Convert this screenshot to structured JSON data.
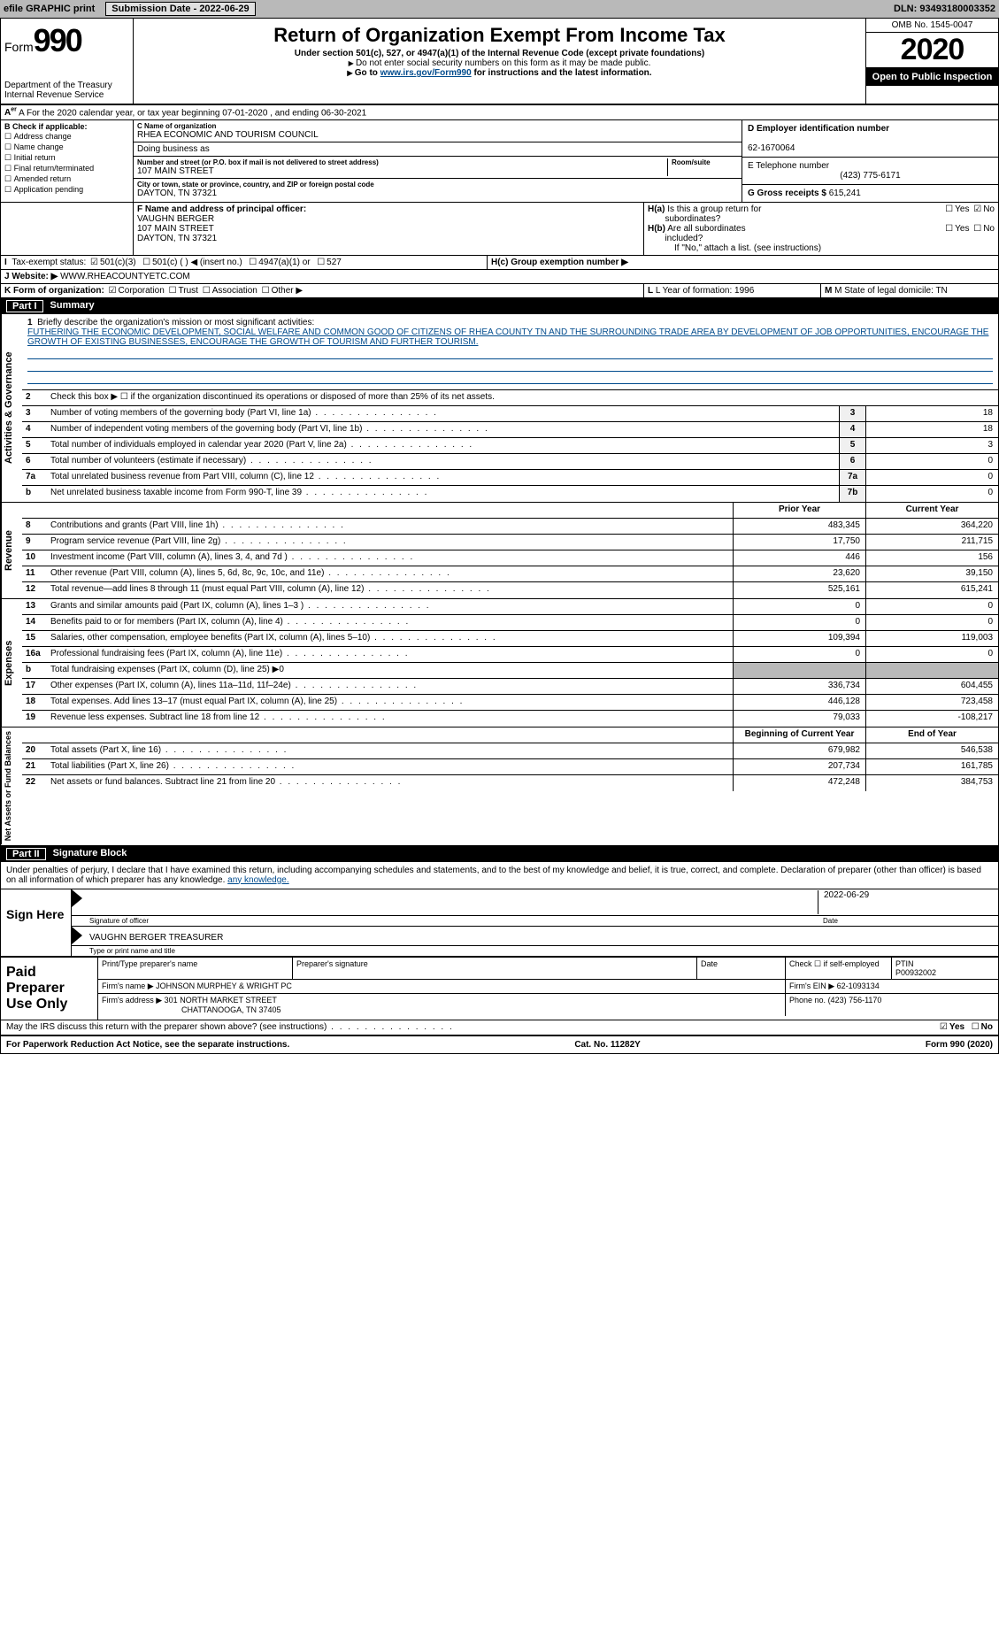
{
  "topbar": {
    "efile": "efile GRAPHIC print",
    "submission_label": "Submission Date - 2022-06-29",
    "dln": "DLN: 93493180003352"
  },
  "header": {
    "form_word": "Form",
    "form_num": "990",
    "dept": "Department of the Treasury",
    "irs": "Internal Revenue Service",
    "title": "Return of Organization Exempt From Income Tax",
    "sub1": "Under section 501(c), 527, or 4947(a)(1) of the Internal Revenue Code (except private foundations)",
    "sub2": "Do not enter social security numbers on this form as it may be made public.",
    "sub3_pre": "Go to ",
    "sub3_link": "www.irs.gov/Form990",
    "sub3_post": " for instructions and the latest information.",
    "omb": "OMB No. 1545-0047",
    "year": "2020",
    "open": "Open to Public Inspection"
  },
  "row_a": "A For the 2020 calendar year, or tax year beginning 07-01-2020   , and ending 06-30-2021",
  "section_b": {
    "hdr": "B Check if applicable:",
    "opts": [
      "Address change",
      "Name change",
      "Initial return",
      "Final return/terminated",
      "Amended return",
      "Application pending"
    ]
  },
  "section_c": {
    "name_lbl": "C Name of organization",
    "name": "RHEA ECONOMIC AND TOURISM COUNCIL",
    "dba_lbl": "Doing business as",
    "dba": "",
    "addr_lbl": "Number and street (or P.O. box if mail is not delivered to street address)",
    "room_lbl": "Room/suite",
    "addr": "107 MAIN STREET",
    "city_lbl": "City or town, state or province, country, and ZIP or foreign postal code",
    "city": "DAYTON, TN  37321"
  },
  "section_d": {
    "ein_lbl": "D Employer identification number",
    "ein": "62-1670064",
    "phone_lbl": "E Telephone number",
    "phone": "(423) 775-6171",
    "gross_lbl": "G Gross receipts $",
    "gross": "615,241"
  },
  "section_f": {
    "lbl": "F  Name and address of principal officer:",
    "name": "VAUGHN BERGER",
    "addr1": "107 MAIN STREET",
    "addr2": "DAYTON, TN  37321"
  },
  "section_h": {
    "a": "H(a)  Is this a group return for subordinates?",
    "b": "H(b)  Are all subordinates included?",
    "b2": "If \"No,\" attach a list. (see instructions)",
    "c": "H(c)  Group exemption number ▶",
    "yes": "Yes",
    "no": "No"
  },
  "row_i": {
    "lbl": "I  Tax-exempt status:",
    "o1": "501(c)(3)",
    "o2": "501(c) (  ) ◀ (insert no.)",
    "o3": "4947(a)(1) or",
    "o4": "527"
  },
  "row_j": {
    "lbl": "J  Website: ▶",
    "val": "WWW.RHEACOUNTYETC.COM"
  },
  "row_k": {
    "lbl": "K Form of organization:",
    "o1": "Corporation",
    "o2": "Trust",
    "o3": "Association",
    "o4": "Other ▶"
  },
  "row_l": {
    "l": "L Year of formation: 1996",
    "m": "M State of legal domicile: TN"
  },
  "part1": {
    "num": "Part I",
    "title": "Summary"
  },
  "mission": {
    "n": "1",
    "lbl": "Briefly describe the organization's mission or most significant activities:",
    "txt": "FUTHERING THE ECONOMIC DEVELOPMENT, SOCIAL WELFARE AND COMMON GOOD OF CITIZENS OF RHEA COUNTY TN AND THE SURROUNDING TRADE AREA BY DEVELOPMENT OF JOB OPPORTUNITIES, ENCOURAGE THE GROWTH OF EXISTING BUSINESSES, ENCOURAGE THE GROWTH OF TOURISM AND FURTHER TOURISM."
  },
  "gov_lines": [
    {
      "n": "2",
      "t": "Check this box ▶ ☐ if the organization discontinued its operations or disposed of more than 25% of its net assets."
    },
    {
      "n": "3",
      "t": "Number of voting members of the governing body (Part VI, line 1a)",
      "box": "3",
      "v": "18"
    },
    {
      "n": "4",
      "t": "Number of independent voting members of the governing body (Part VI, line 1b)",
      "box": "4",
      "v": "18"
    },
    {
      "n": "5",
      "t": "Total number of individuals employed in calendar year 2020 (Part V, line 2a)",
      "box": "5",
      "v": "3"
    },
    {
      "n": "6",
      "t": "Total number of volunteers (estimate if necessary)",
      "box": "6",
      "v": "0"
    },
    {
      "n": "7a",
      "t": "Total unrelated business revenue from Part VIII, column (C), line 12",
      "box": "7a",
      "v": "0"
    },
    {
      "n": "b",
      "t": "Net unrelated business taxable income from Form 990-T, line 39",
      "box": "7b",
      "v": "0"
    }
  ],
  "rev_hdr": {
    "py": "Prior Year",
    "cy": "Current Year"
  },
  "rev_lines": [
    {
      "n": "8",
      "t": "Contributions and grants (Part VIII, line 1h)",
      "py": "483,345",
      "cy": "364,220"
    },
    {
      "n": "9",
      "t": "Program service revenue (Part VIII, line 2g)",
      "py": "17,750",
      "cy": "211,715"
    },
    {
      "n": "10",
      "t": "Investment income (Part VIII, column (A), lines 3, 4, and 7d )",
      "py": "446",
      "cy": "156"
    },
    {
      "n": "11",
      "t": "Other revenue (Part VIII, column (A), lines 5, 6d, 8c, 9c, 10c, and 11e)",
      "py": "23,620",
      "cy": "39,150"
    },
    {
      "n": "12",
      "t": "Total revenue—add lines 8 through 11 (must equal Part VIII, column (A), line 12)",
      "py": "525,161",
      "cy": "615,241"
    }
  ],
  "exp_lines": [
    {
      "n": "13",
      "t": "Grants and similar amounts paid (Part IX, column (A), lines 1–3 )",
      "py": "0",
      "cy": "0"
    },
    {
      "n": "14",
      "t": "Benefits paid to or for members (Part IX, column (A), line 4)",
      "py": "0",
      "cy": "0"
    },
    {
      "n": "15",
      "t": "Salaries, other compensation, employee benefits (Part IX, column (A), lines 5–10)",
      "py": "109,394",
      "cy": "119,003"
    },
    {
      "n": "16a",
      "t": "Professional fundraising fees (Part IX, column (A), line 11e)",
      "py": "0",
      "cy": "0"
    },
    {
      "n": "b",
      "t": "Total fundraising expenses (Part IX, column (D), line 25) ▶0",
      "py": "",
      "cy": "",
      "noval": true
    },
    {
      "n": "17",
      "t": "Other expenses (Part IX, column (A), lines 11a–11d, 11f–24e)",
      "py": "336,734",
      "cy": "604,455"
    },
    {
      "n": "18",
      "t": "Total expenses. Add lines 13–17 (must equal Part IX, column (A), line 25)",
      "py": "446,128",
      "cy": "723,458"
    },
    {
      "n": "19",
      "t": "Revenue less expenses. Subtract line 18 from line 12",
      "py": "79,033",
      "cy": "-108,217"
    }
  ],
  "net_hdr": {
    "py": "Beginning of Current Year",
    "cy": "End of Year"
  },
  "net_lines": [
    {
      "n": "20",
      "t": "Total assets (Part X, line 16)",
      "py": "679,982",
      "cy": "546,538"
    },
    {
      "n": "21",
      "t": "Total liabilities (Part X, line 26)",
      "py": "207,734",
      "cy": "161,785"
    },
    {
      "n": "22",
      "t": "Net assets or fund balances. Subtract line 21 from line 20",
      "py": "472,248",
      "cy": "384,753"
    }
  ],
  "side_labels": {
    "gov": "Activities & Governance",
    "rev": "Revenue",
    "exp": "Expenses",
    "net": "Net Assets or Fund Balances"
  },
  "part2": {
    "num": "Part II",
    "title": "Signature Block"
  },
  "penalty": "Under penalties of perjury, I declare that I have examined this return, including accompanying schedules and statements, and to the best of my knowledge and belief, it is true, correct, and complete. Declaration of preparer (other than officer) is based on all information of which preparer has any knowledge.",
  "sign": {
    "here": "Sign Here",
    "sig_lbl": "Signature of officer",
    "date_lbl": "Date",
    "date": "2022-06-29",
    "name": "VAUGHN BERGER  TREASURER",
    "name_lbl": "Type or print name and title"
  },
  "prep": {
    "label": "Paid Preparer Use Only",
    "h1": "Print/Type preparer's name",
    "h2": "Preparer's signature",
    "h3": "Date",
    "h4": "Check ☐ if self-employed",
    "h5_lbl": "PTIN",
    "h5": "P00932002",
    "firm_lbl": "Firm's name   ▶",
    "firm": "JOHNSON MURPHEY & WRIGHT PC",
    "ein_lbl": "Firm's EIN ▶",
    "ein": "62-1093134",
    "addr_lbl": "Firm's address ▶",
    "addr1": "301 NORTH MARKET STREET",
    "addr2": "CHATTANOOGA, TN  37405",
    "phone_lbl": "Phone no.",
    "phone": "(423) 756-1170"
  },
  "discuss": {
    "t": "May the IRS discuss this return with the preparer shown above? (see instructions)",
    "yes": "Yes",
    "no": "No"
  },
  "footer": {
    "l": "For Paperwork Reduction Act Notice, see the separate instructions.",
    "m": "Cat. No. 11282Y",
    "r": "Form 990 (2020)"
  },
  "colors": {
    "topbar_bg": "#b9b9b9",
    "link": "#004b8d",
    "black": "#000000",
    "white": "#ffffff",
    "grey_box": "#f0f0f0"
  }
}
